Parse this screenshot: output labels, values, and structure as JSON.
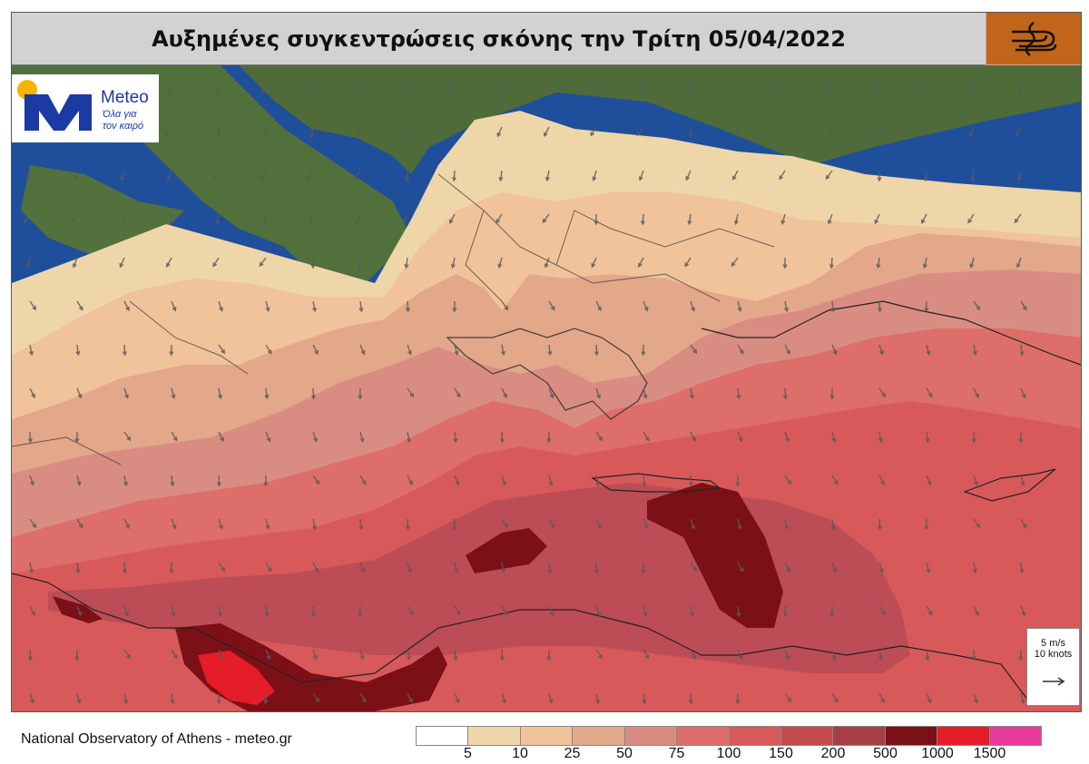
{
  "title": "Αυξημένες συγκεντρώσεις σκόνης την Τρίτη 05/04/2022",
  "logo": {
    "name": "Meteo",
    "tagline_1": "Όλα για",
    "tagline_2": "τον καιρό"
  },
  "wind_key": {
    "line1": "5 m/s",
    "line2": "10 knots",
    "arrow_icon": "arrow-right-icon"
  },
  "credit": "National Observatory of Athens - meteo.gr",
  "colorbar": {
    "colors": [
      "#ffffff",
      "#efd6a8",
      "#f0c39a",
      "#e3a78a",
      "#d98d82",
      "#dd6e69",
      "#d8595a",
      "#c44a4f",
      "#a83e45",
      "#7c1017",
      "#e41d29",
      "#ea3a9c"
    ],
    "labels": [
      "5",
      "10",
      "25",
      "50",
      "75",
      "100",
      "150",
      "200",
      "500",
      "1000",
      "1500"
    ]
  },
  "map": {
    "sea_color": "#1f4f9a",
    "land_color": "#4f6b3a"
  }
}
